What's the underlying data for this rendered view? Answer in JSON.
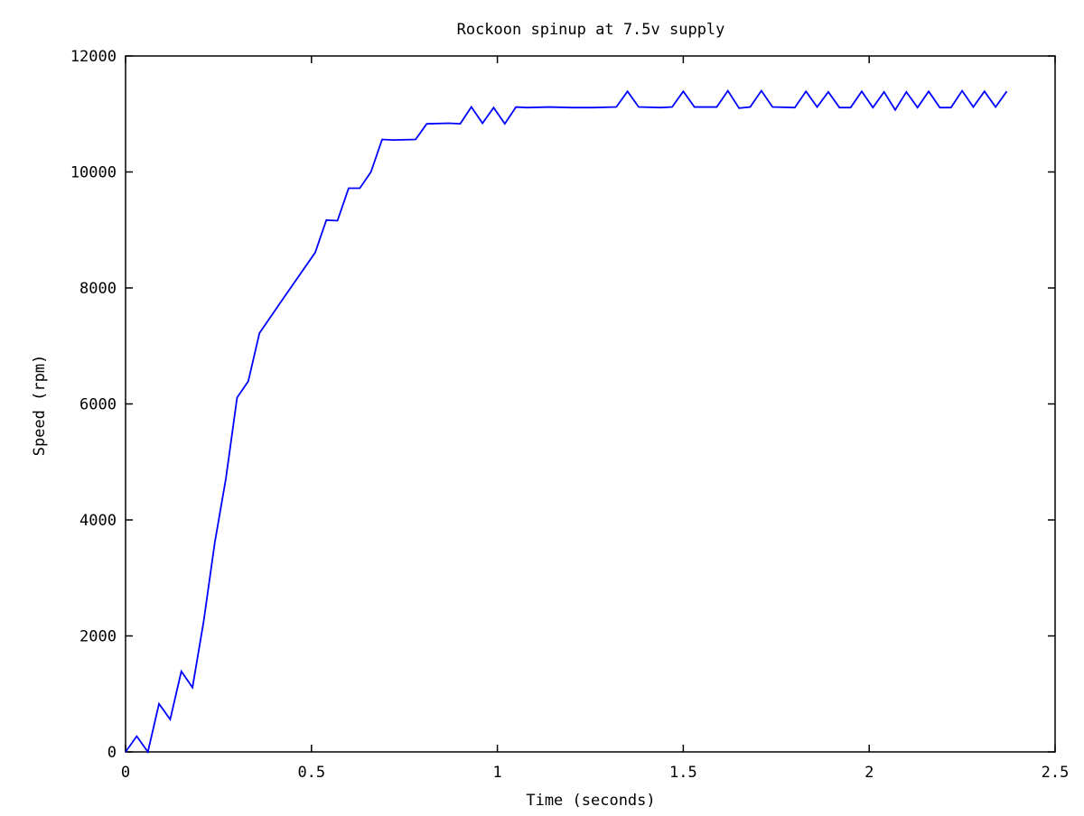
{
  "chart_data": {
    "type": "line",
    "title": "Rockoon spinup at 7.5v supply",
    "xlabel": "Time (seconds)",
    "ylabel": "Speed (rpm)",
    "xlim": [
      0,
      2.5
    ],
    "ylim": [
      0,
      12000
    ],
    "xticks": [
      0,
      0.5,
      1,
      1.5,
      2,
      2.5
    ],
    "xtick_labels": [
      "0",
      "0.5",
      "1",
      "1.5",
      "2",
      "2.5"
    ],
    "yticks": [
      0,
      2000,
      4000,
      6000,
      8000,
      10000,
      12000
    ],
    "ytick_labels": [
      "0",
      "2000",
      "4000",
      "6000",
      "8000",
      "10000",
      "12000"
    ],
    "grid": false,
    "line_color": "#0000ff",
    "series": [
      {
        "name": "",
        "x": [
          0,
          0.03,
          0.06,
          0.09,
          0.12,
          0.15,
          0.18,
          0.21,
          0.24,
          0.27,
          0.3,
          0.33,
          0.36,
          0.42,
          0.51,
          0.54,
          0.57,
          0.6,
          0.63,
          0.66,
          0.69,
          0.72,
          0.78,
          0.81,
          0.87,
          0.9,
          0.93,
          0.96,
          0.99,
          1.02,
          1.05,
          1.08,
          1.14,
          1.2,
          1.26,
          1.32,
          1.35,
          1.38,
          1.44,
          1.47,
          1.5,
          1.53,
          1.59,
          1.62,
          1.65,
          1.68,
          1.71,
          1.74,
          1.8,
          1.83,
          1.86,
          1.89,
          1.92,
          1.95,
          1.98,
          2.01,
          2.04,
          2.07,
          2.1,
          2.13,
          2.16,
          2.19,
          2.22,
          2.25,
          2.28,
          2.31,
          2.34,
          2.37
        ],
        "y": [
          0,
          270,
          0,
          830,
          560,
          1390,
          1110,
          2250,
          3610,
          4720,
          6110,
          6390,
          7220,
          7780,
          8610,
          9170,
          9160,
          9720,
          9720,
          10000,
          10560,
          10550,
          10560,
          10830,
          10840,
          10830,
          11120,
          10840,
          11110,
          10830,
          11120,
          11110,
          11120,
          11110,
          11110,
          11120,
          11390,
          11120,
          11110,
          11120,
          11390,
          11120,
          11120,
          11400,
          11100,
          11120,
          11400,
          11120,
          11110,
          11390,
          11120,
          11380,
          11110,
          11110,
          11390,
          11110,
          11380,
          11070,
          11380,
          11110,
          11390,
          11110,
          11110,
          11400,
          11120,
          11390,
          11120,
          11390
        ]
      }
    ]
  }
}
